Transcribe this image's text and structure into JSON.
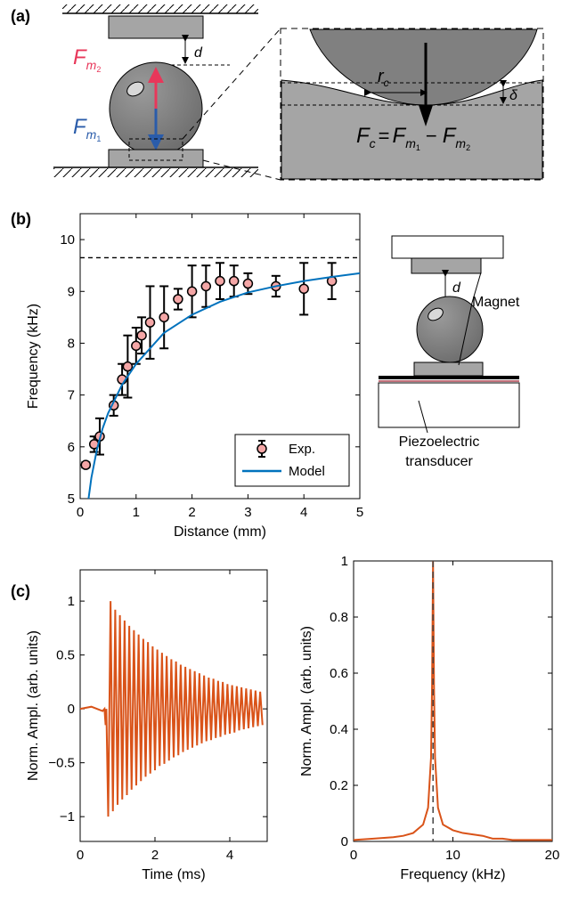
{
  "panel_labels": [
    "(a)",
    "(b)",
    "(c)"
  ],
  "diagram_a": {
    "d": "d",
    "force_top": [
      "F",
      "m",
      "2"
    ],
    "force_bottom": [
      "F",
      "m",
      "1"
    ],
    "radius": [
      "r",
      "c"
    ],
    "delta": "δ",
    "formula": [
      "F",
      "c",
      "=",
      "F",
      "m",
      "1",
      "−",
      "F",
      "m",
      "2"
    ]
  },
  "diagram_b": {
    "d": "d",
    "magnet": "Magnet",
    "transducer": [
      "Piezoelectric",
      "transducer"
    ]
  },
  "chart_data": [
    {
      "type": "scatter",
      "xlabel": "Distance (mm)",
      "ylabel": "Frequency (kHz)",
      "xlim": [
        0,
        5
      ],
      "ylim": [
        5,
        10.5
      ],
      "xticks": [
        0,
        1,
        2,
        3,
        4,
        5
      ],
      "yticks": [
        5,
        6,
        7,
        8,
        9,
        10
      ],
      "reference_y": 9.65,
      "legend": "lower right",
      "series": [
        {
          "name": "Exp.",
          "color": "#f4a6a6",
          "x": [
            0.1,
            0.25,
            0.35,
            0.6,
            0.75,
            0.85,
            1.0,
            1.1,
            1.25,
            1.5,
            1.75,
            2.0,
            2.25,
            2.5,
            2.75,
            3.0,
            3.5,
            4.0,
            4.5
          ],
          "values": [
            5.65,
            6.05,
            6.2,
            6.8,
            7.3,
            7.55,
            7.95,
            8.15,
            8.4,
            8.5,
            8.85,
            9.0,
            9.1,
            9.2,
            9.2,
            9.15,
            9.1,
            9.05,
            9.2
          ],
          "errors": [
            0.05,
            0.15,
            0.35,
            0.2,
            0.3,
            0.6,
            0.35,
            0.35,
            0.7,
            0.6,
            0.2,
            0.5,
            0.4,
            0.35,
            0.3,
            0.2,
            0.2,
            0.5,
            0.35
          ]
        },
        {
          "name": "Model",
          "color": "#0072bd",
          "x": [
            0.15,
            0.2,
            0.3,
            0.4,
            0.5,
            0.75,
            1,
            1.5,
            2,
            2.5,
            3,
            3.5,
            4,
            4.5,
            5
          ],
          "values": [
            5.0,
            5.4,
            5.95,
            6.35,
            6.65,
            7.2,
            7.6,
            8.2,
            8.55,
            8.8,
            8.98,
            9.1,
            9.2,
            9.28,
            9.35
          ]
        }
      ]
    },
    {
      "type": "line",
      "xlabel": "Time (ms)",
      "ylabel": "Norm. Ampl. (arb. units)",
      "xlim": [
        0,
        5
      ],
      "ylim": [
        -1.23,
        1.29
      ],
      "xticks": [
        0,
        2,
        4
      ],
      "yticks": [
        {
          "value": -1,
          "label": "−1"
        },
        {
          "value": -0.5,
          "label": "−0.5"
        },
        0,
        0.5,
        1
      ],
      "series": [
        {
          "color": "#d95319",
          "x": [
            0,
            0.3,
            0.6,
            0.65,
            0.68,
            0.7,
            0.75,
            0.8125,
            0.875,
            0.9375,
            1,
            1.0625,
            1.125,
            1.1875,
            1.25,
            1.3125,
            1.375,
            1.4375,
            1.5,
            1.5625,
            1.625,
            1.6875,
            1.75,
            1.8125,
            1.875,
            1.9375,
            2,
            2.0625,
            2.125,
            2.1875,
            2.25,
            2.3125,
            2.375,
            2.4375,
            2.5,
            2.5625,
            2.625,
            2.6875,
            2.75,
            2.8125,
            2.875,
            2.9375,
            3,
            3.0625,
            3.125,
            3.1875,
            3.25,
            3.3125,
            3.375,
            3.4375,
            3.5,
            3.5625,
            3.625,
            3.6875,
            3.75,
            3.8125,
            3.875,
            3.9375,
            4,
            4.0625,
            4.125,
            4.1875,
            4.25,
            4.3125,
            4.375,
            4.4375,
            4.5,
            4.5625,
            4.625,
            4.6875,
            4.75,
            4.8125,
            4.875
          ],
          "values": [
            0,
            0.02,
            -0.02,
            0,
            -0.15,
            0,
            -1.0,
            1.0,
            -0.95,
            0.92,
            -0.89,
            0.87,
            -0.84,
            0.82,
            -0.8,
            0.77,
            -0.75,
            0.73,
            -0.71,
            0.69,
            -0.67,
            0.65,
            -0.63,
            0.62,
            -0.6,
            0.58,
            -0.57,
            0.55,
            -0.53,
            0.52,
            -0.51,
            0.49,
            -0.48,
            0.46,
            -0.45,
            0.44,
            -0.43,
            0.41,
            -0.4,
            0.39,
            -0.38,
            0.37,
            -0.36,
            0.35,
            -0.34,
            0.33,
            -0.32,
            0.31,
            -0.3,
            0.29,
            -0.29,
            0.28,
            -0.27,
            0.26,
            -0.26,
            0.25,
            -0.24,
            0.23,
            -0.23,
            0.22,
            -0.22,
            0.21,
            -0.2,
            0.2,
            -0.19,
            0.19,
            -0.18,
            0.18,
            -0.17,
            0.17,
            -0.16,
            0.16,
            -0.15
          ]
        }
      ]
    },
    {
      "type": "line",
      "xlabel": "Frequency (kHz)",
      "ylabel": "Norm. Ampl. (arb. units)",
      "xlim": [
        0,
        20
      ],
      "ylim": [
        0,
        1
      ],
      "xticks": [
        0,
        10,
        20
      ],
      "yticks": [
        0,
        0.2,
        0.4,
        0.6,
        0.8,
        1
      ],
      "reference_x": 8,
      "series": [
        {
          "color": "#d95319",
          "x": [
            0,
            2,
            4,
            5,
            6,
            7,
            7.5,
            7.8,
            7.9,
            8,
            8.1,
            8.2,
            8.5,
            9,
            10,
            11,
            12,
            13,
            14,
            15,
            16,
            18,
            20
          ],
          "values": [
            0.005,
            0.01,
            0.015,
            0.02,
            0.03,
            0.06,
            0.12,
            0.3,
            0.55,
            1,
            0.55,
            0.3,
            0.12,
            0.06,
            0.04,
            0.03,
            0.025,
            0.02,
            0.01,
            0.01,
            0.005,
            0.005,
            0.005
          ]
        }
      ]
    }
  ]
}
